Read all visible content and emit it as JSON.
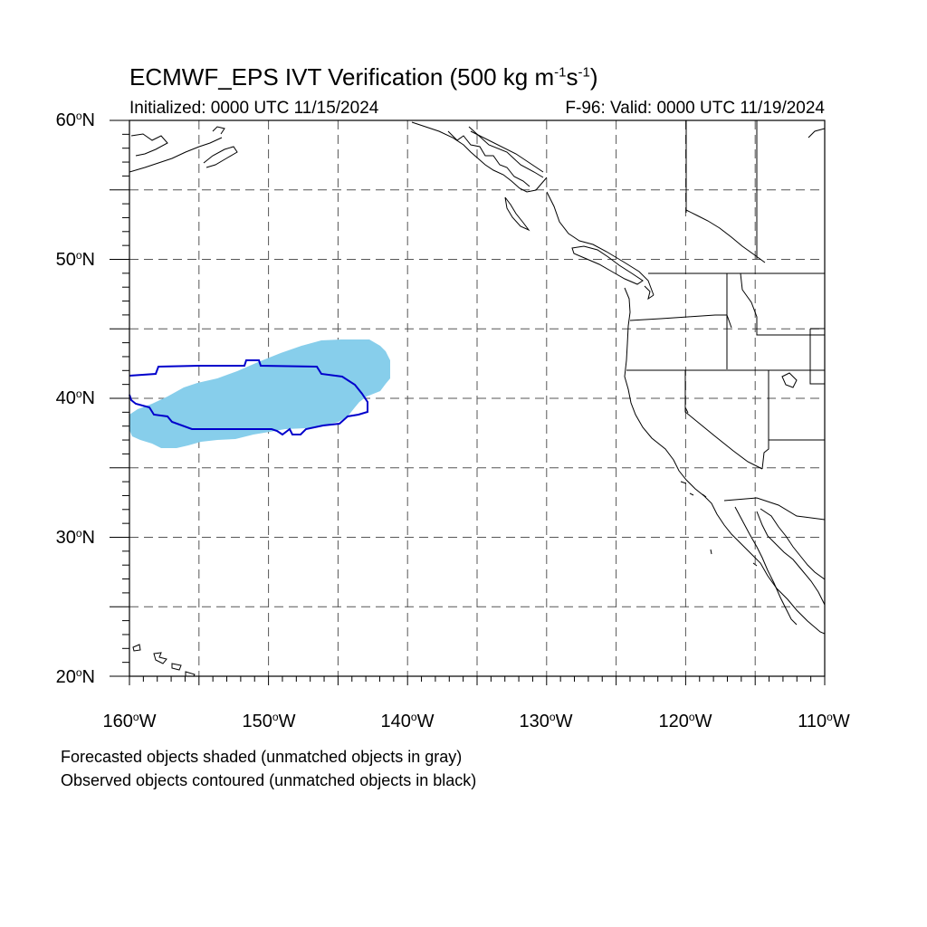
{
  "title": {
    "main": "ECMWF_EPS IVT Verification (500 kg m",
    "sup1": "-1",
    "mid": "s",
    "sup2": "-1",
    "end": ")"
  },
  "subtitle_left": "Initialized: 0000 UTC 11/15/2024",
  "subtitle_right": "F-96: Valid: 0000 UTC 11/19/2024",
  "lat_labels": [
    {
      "value": "60",
      "suffix": "N"
    },
    {
      "value": "50",
      "suffix": "N"
    },
    {
      "value": "40",
      "suffix": "N"
    },
    {
      "value": "30",
      "suffix": "N"
    },
    {
      "value": "20",
      "suffix": "N"
    }
  ],
  "lon_labels": [
    {
      "value": "160",
      "suffix": "W"
    },
    {
      "value": "150",
      "suffix": "W"
    },
    {
      "value": "140",
      "suffix": "W"
    },
    {
      "value": "130",
      "suffix": "W"
    },
    {
      "value": "120",
      "suffix": "W"
    },
    {
      "value": "110",
      "suffix": "W"
    }
  ],
  "degree_symbol": "o",
  "caption_line1": "Forecasted objects shaded (unmatched objects in gray)",
  "caption_line2": "Observed objects contoured (unmatched objects in black)",
  "colors": {
    "forecast_fill": "#87ceeb",
    "observed_contour": "#0000cc",
    "grid": "#555555",
    "coast": "#000000"
  }
}
